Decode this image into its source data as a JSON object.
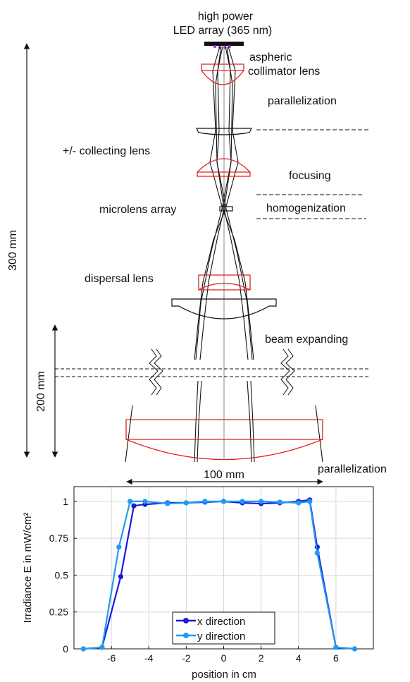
{
  "diagram": {
    "labels": {
      "source_line1": "high power",
      "source_line2": "LED array (365 nm)",
      "collimator_line1": "aspheric",
      "collimator_line2": "collimator lens",
      "parallelization_top": "parallelization",
      "collecting_lens": "+/- collecting lens",
      "focusing": "focusing",
      "microlens_array": "microlens array",
      "homogenization": "homogenization",
      "dispersal_lens": "dispersal lens",
      "beam_expanding": "beam expanding",
      "parallelization_bottom": "parallelization"
    },
    "dimensions": {
      "total_length": "300 mm",
      "expansion_length": "200 mm",
      "output_width": "100 mm"
    },
    "colors": {
      "lens_red": "#e02020",
      "lens_black": "#111111",
      "led_marker": "#9b30d9"
    }
  },
  "chart_data": {
    "type": "line",
    "title": "",
    "xlabel": "position in cm",
    "ylabel": "Irradiance E in mW/cm²",
    "xlim": [
      -8,
      8
    ],
    "ylim": [
      0,
      1.1
    ],
    "xticks": [
      -6,
      -4,
      -2,
      0,
      2,
      4,
      6
    ],
    "yticks": [
      0,
      0.25,
      0.5,
      0.75,
      1
    ],
    "ytick_labels": [
      "0",
      "0.25",
      "0.5",
      "0.75",
      "1"
    ],
    "grid": true,
    "legend": "bottom-center",
    "series": [
      {
        "name": "x direction",
        "color": "#1a1adb",
        "x": [
          -7.5,
          -6.5,
          -5.5,
          -4.8,
          -4.2,
          -3.0,
          -2.0,
          -1.0,
          0.0,
          1.0,
          2.0,
          3.0,
          4.0,
          4.6,
          5.0,
          6.0,
          7.0
        ],
        "y": [
          0.0,
          0.01,
          0.49,
          0.97,
          0.98,
          0.99,
          0.99,
          0.995,
          1.0,
          0.99,
          0.985,
          0.99,
          1.0,
          1.01,
          0.69,
          0.01,
          0.0
        ]
      },
      {
        "name": "y direction",
        "color": "#1e9bf0",
        "x": [
          -7.5,
          -6.5,
          -5.6,
          -5.0,
          -4.2,
          -3.0,
          -2.0,
          -1.0,
          0.0,
          1.0,
          2.0,
          3.0,
          4.0,
          4.6,
          5.0,
          6.0,
          7.0
        ],
        "y": [
          0.0,
          0.01,
          0.69,
          1.0,
          1.0,
          0.985,
          0.99,
          1.0,
          1.0,
          1.0,
          1.0,
          0.995,
          0.99,
          1.0,
          0.65,
          0.01,
          0.0
        ]
      }
    ]
  }
}
